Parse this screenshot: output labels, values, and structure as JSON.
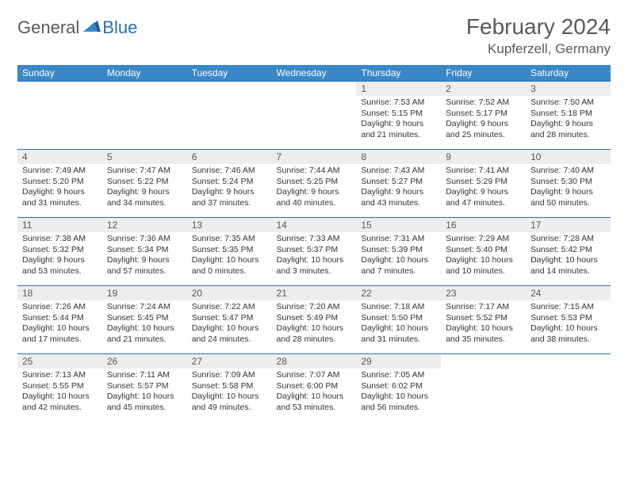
{
  "logo": {
    "text1": "General",
    "text2": "Blue"
  },
  "title": "February 2024",
  "location": "Kupferzell, Germany",
  "colors": {
    "header_bg": "#3a87c8",
    "accent": "#2a71b8",
    "daynum_bg": "#ededed",
    "text_muted": "#595959"
  },
  "dow": [
    "Sunday",
    "Monday",
    "Tuesday",
    "Wednesday",
    "Thursday",
    "Friday",
    "Saturday"
  ],
  "weeks": [
    [
      null,
      null,
      null,
      null,
      {
        "n": "1",
        "sr": "7:53 AM",
        "ss": "5:15 PM",
        "dl": "9 hours and 21 minutes."
      },
      {
        "n": "2",
        "sr": "7:52 AM",
        "ss": "5:17 PM",
        "dl": "9 hours and 25 minutes."
      },
      {
        "n": "3",
        "sr": "7:50 AM",
        "ss": "5:18 PM",
        "dl": "9 hours and 28 minutes."
      }
    ],
    [
      {
        "n": "4",
        "sr": "7:49 AM",
        "ss": "5:20 PM",
        "dl": "9 hours and 31 minutes."
      },
      {
        "n": "5",
        "sr": "7:47 AM",
        "ss": "5:22 PM",
        "dl": "9 hours and 34 minutes."
      },
      {
        "n": "6",
        "sr": "7:46 AM",
        "ss": "5:24 PM",
        "dl": "9 hours and 37 minutes."
      },
      {
        "n": "7",
        "sr": "7:44 AM",
        "ss": "5:25 PM",
        "dl": "9 hours and 40 minutes."
      },
      {
        "n": "8",
        "sr": "7:43 AM",
        "ss": "5:27 PM",
        "dl": "9 hours and 43 minutes."
      },
      {
        "n": "9",
        "sr": "7:41 AM",
        "ss": "5:29 PM",
        "dl": "9 hours and 47 minutes."
      },
      {
        "n": "10",
        "sr": "7:40 AM",
        "ss": "5:30 PM",
        "dl": "9 hours and 50 minutes."
      }
    ],
    [
      {
        "n": "11",
        "sr": "7:38 AM",
        "ss": "5:32 PM",
        "dl": "9 hours and 53 minutes."
      },
      {
        "n": "12",
        "sr": "7:36 AM",
        "ss": "5:34 PM",
        "dl": "9 hours and 57 minutes."
      },
      {
        "n": "13",
        "sr": "7:35 AM",
        "ss": "5:35 PM",
        "dl": "10 hours and 0 minutes."
      },
      {
        "n": "14",
        "sr": "7:33 AM",
        "ss": "5:37 PM",
        "dl": "10 hours and 3 minutes."
      },
      {
        "n": "15",
        "sr": "7:31 AM",
        "ss": "5:39 PM",
        "dl": "10 hours and 7 minutes."
      },
      {
        "n": "16",
        "sr": "7:29 AM",
        "ss": "5:40 PM",
        "dl": "10 hours and 10 minutes."
      },
      {
        "n": "17",
        "sr": "7:28 AM",
        "ss": "5:42 PM",
        "dl": "10 hours and 14 minutes."
      }
    ],
    [
      {
        "n": "18",
        "sr": "7:26 AM",
        "ss": "5:44 PM",
        "dl": "10 hours and 17 minutes."
      },
      {
        "n": "19",
        "sr": "7:24 AM",
        "ss": "5:45 PM",
        "dl": "10 hours and 21 minutes."
      },
      {
        "n": "20",
        "sr": "7:22 AM",
        "ss": "5:47 PM",
        "dl": "10 hours and 24 minutes."
      },
      {
        "n": "21",
        "sr": "7:20 AM",
        "ss": "5:49 PM",
        "dl": "10 hours and 28 minutes."
      },
      {
        "n": "22",
        "sr": "7:18 AM",
        "ss": "5:50 PM",
        "dl": "10 hours and 31 minutes."
      },
      {
        "n": "23",
        "sr": "7:17 AM",
        "ss": "5:52 PM",
        "dl": "10 hours and 35 minutes."
      },
      {
        "n": "24",
        "sr": "7:15 AM",
        "ss": "5:53 PM",
        "dl": "10 hours and 38 minutes."
      }
    ],
    [
      {
        "n": "25",
        "sr": "7:13 AM",
        "ss": "5:55 PM",
        "dl": "10 hours and 42 minutes."
      },
      {
        "n": "26",
        "sr": "7:11 AM",
        "ss": "5:57 PM",
        "dl": "10 hours and 45 minutes."
      },
      {
        "n": "27",
        "sr": "7:09 AM",
        "ss": "5:58 PM",
        "dl": "10 hours and 49 minutes."
      },
      {
        "n": "28",
        "sr": "7:07 AM",
        "ss": "6:00 PM",
        "dl": "10 hours and 53 minutes."
      },
      {
        "n": "29",
        "sr": "7:05 AM",
        "ss": "6:02 PM",
        "dl": "10 hours and 56 minutes."
      },
      null,
      null
    ]
  ],
  "labels": {
    "sunrise": "Sunrise:",
    "sunset": "Sunset:",
    "daylight": "Daylight:"
  }
}
